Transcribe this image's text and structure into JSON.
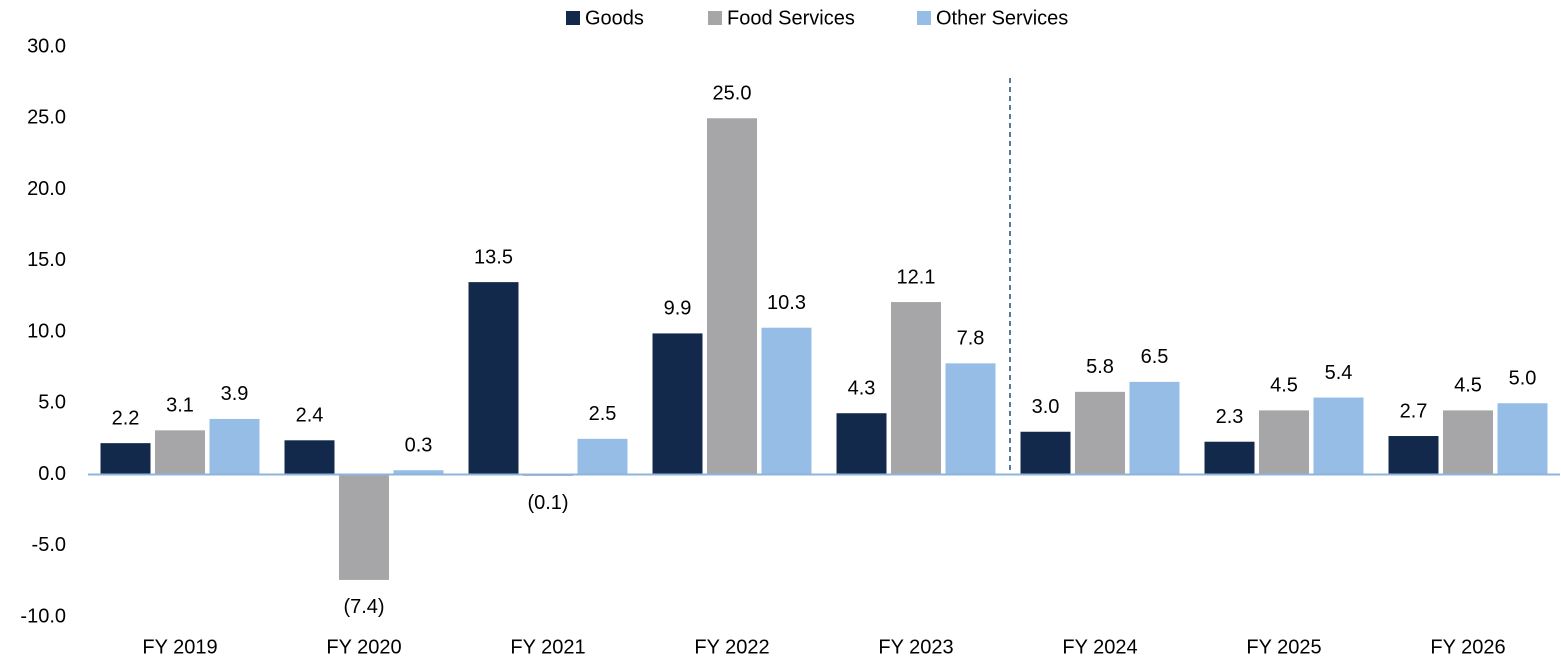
{
  "chart_data": {
    "type": "bar",
    "categories": [
      "FY 2019",
      "FY 2020",
      "FY 2021",
      "FY 2022",
      "FY 2023",
      "FY 2024",
      "FY 2025",
      "FY 2026"
    ],
    "series": [
      {
        "name": "Goods",
        "color": "#13294b",
        "values": [
          2.2,
          2.4,
          13.5,
          9.9,
          4.3,
          3.0,
          2.3,
          2.7
        ],
        "value_labels": [
          "2.2",
          "2.4",
          "13.5",
          "9.9",
          "4.3",
          "3.0",
          "2.3",
          "2.7"
        ]
      },
      {
        "name": "Food Services",
        "color": "#a6a6a8",
        "values": [
          3.1,
          -7.4,
          -0.1,
          25.0,
          12.1,
          5.8,
          4.5,
          4.5
        ],
        "value_labels": [
          "3.1",
          "(7.4)",
          "(0.1)",
          "25.0",
          "12.1",
          "5.8",
          "4.5",
          "4.5"
        ]
      },
      {
        "name": "Other Services",
        "color": "#95bde6",
        "values": [
          3.9,
          0.3,
          2.5,
          10.3,
          7.8,
          6.5,
          5.4,
          5.0
        ],
        "value_labels": [
          "3.9",
          "0.3",
          "2.5",
          "10.3",
          "7.8",
          "6.5",
          "5.4",
          "5.0"
        ]
      }
    ],
    "ylim": [
      -10,
      30
    ],
    "yticks": [
      {
        "value": -10,
        "label": "-10.0"
      },
      {
        "value": -5,
        "label": "-5.0"
      },
      {
        "value": 0,
        "label": "0.0"
      },
      {
        "value": 5,
        "label": "5.0"
      },
      {
        "value": 10,
        "label": "10.0"
      },
      {
        "value": 15,
        "label": "15.0"
      },
      {
        "value": 20,
        "label": "20.0"
      },
      {
        "value": 25,
        "label": "25.0"
      },
      {
        "value": 30,
        "label": "30.0"
      }
    ],
    "legend": "top"
  }
}
